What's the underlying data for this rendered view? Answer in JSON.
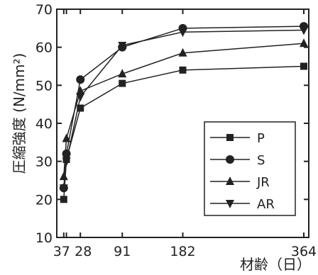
{
  "chart_data": {
    "type": "line",
    "title": "",
    "ylabel": "圧縮強度 (N/mm²)",
    "xlabel": "材齢（日）",
    "x": [
      3,
      7,
      28,
      91,
      182,
      364
    ],
    "x_tick_labels": [
      "3",
      "7",
      "28",
      "91",
      "182",
      "364"
    ],
    "y_tick_labels": [
      "10",
      "20",
      "30",
      "40",
      "50",
      "60",
      "70"
    ],
    "xlim": [
      0,
      364
    ],
    "ylim": [
      10,
      70
    ],
    "grid": false,
    "legend_position": "bottom-right",
    "series": [
      {
        "name": "P",
        "marker": "square",
        "values": [
          20.0,
          30.5,
          44.0,
          50.5,
          54.0,
          55.0
        ]
      },
      {
        "name": "S",
        "marker": "circle",
        "values": [
          23.0,
          32.0,
          51.5,
          60.0,
          65.0,
          65.5
        ]
      },
      {
        "name": "JR",
        "marker": "triangle-up",
        "values": [
          26.0,
          36.0,
          48.5,
          53.0,
          58.5,
          61.0
        ]
      },
      {
        "name": "AR",
        "marker": "triangle-down",
        "values": [
          23.0,
          30.0,
          47.0,
          60.5,
          64.0,
          64.5
        ]
      }
    ]
  }
}
